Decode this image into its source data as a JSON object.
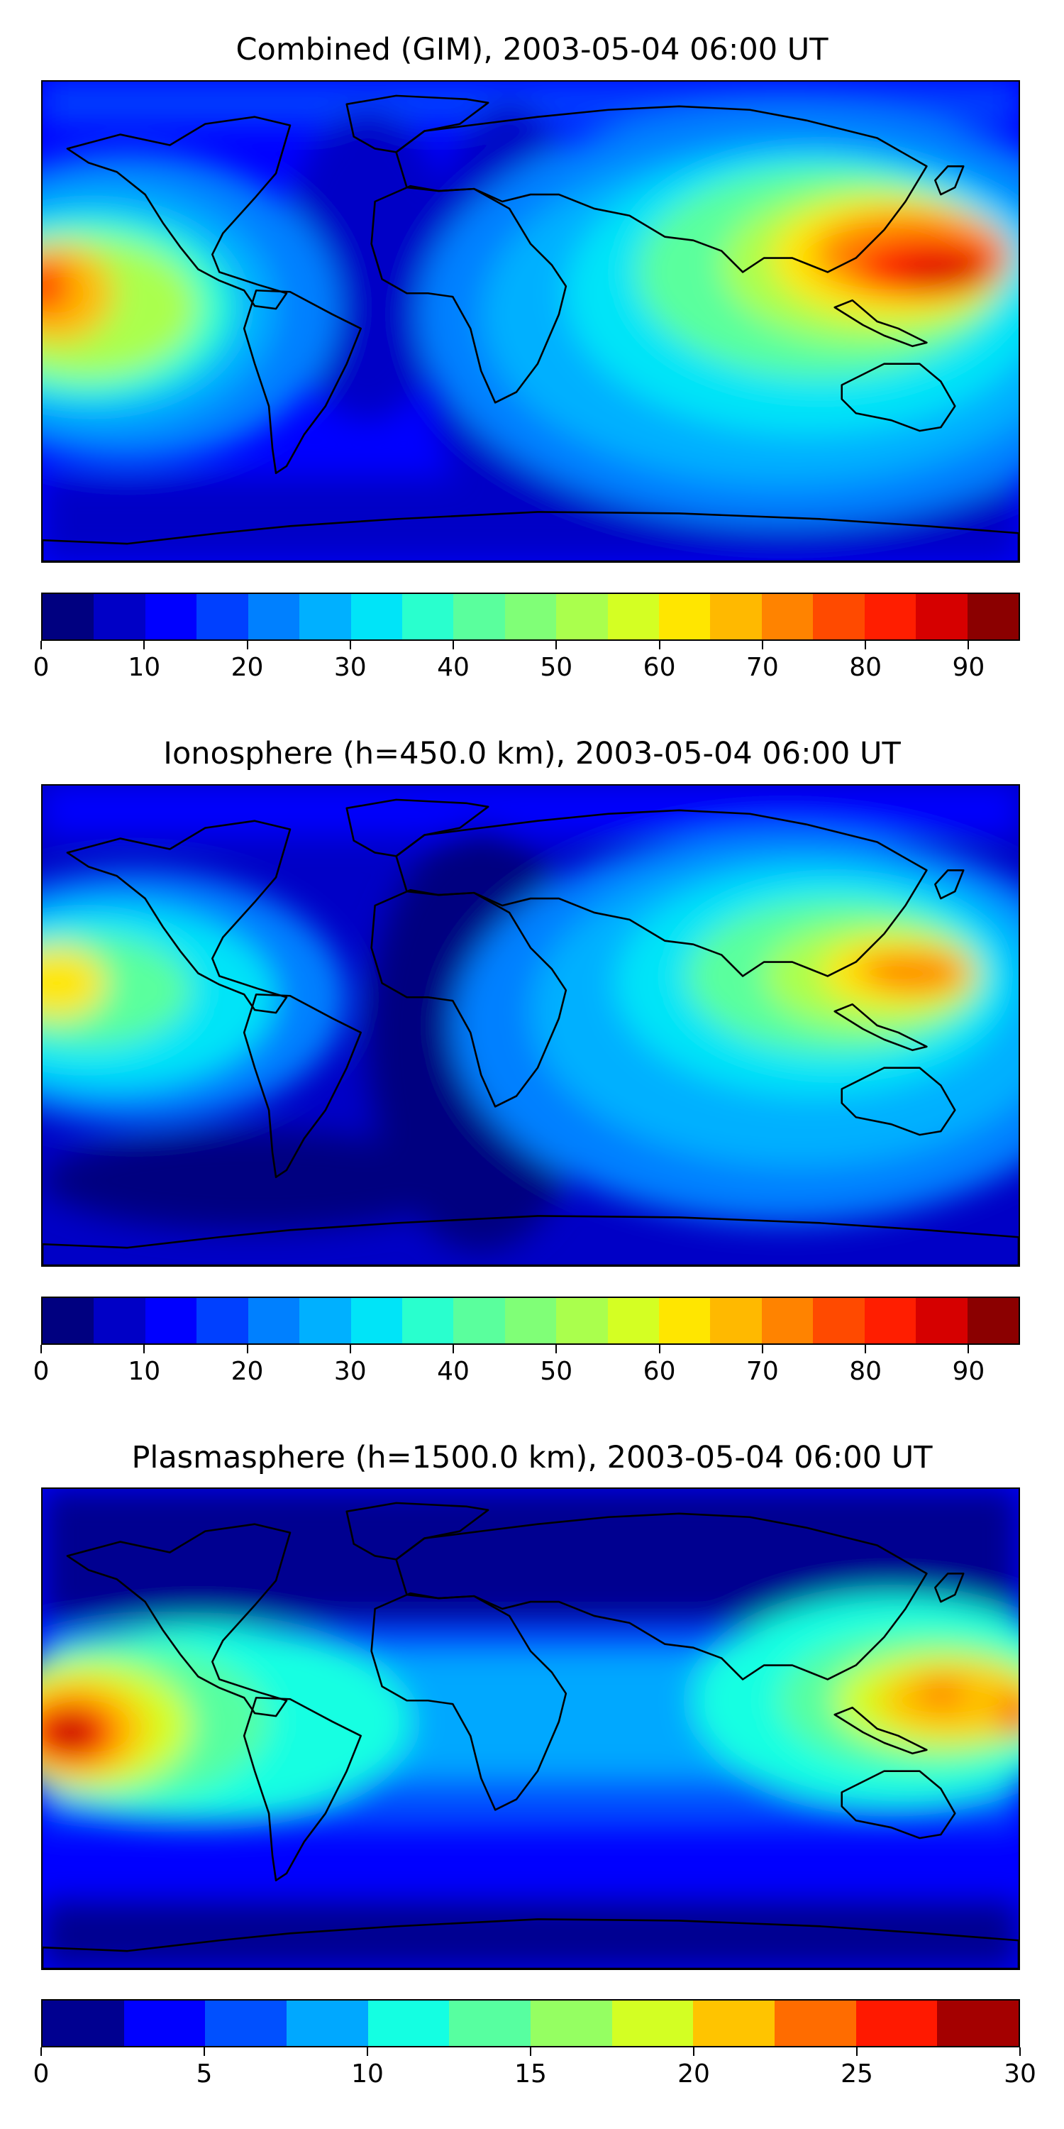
{
  "colors": {
    "jet19": [
      "#000080",
      "#0000c6",
      "#0000ff",
      "#0040ff",
      "#0080ff",
      "#00b0ff",
      "#00e4f8",
      "#29ffce",
      "#5aff9d",
      "#80ff77",
      "#aaff4d",
      "#d4ff23",
      "#ffe600",
      "#ffb900",
      "#ff8300",
      "#ff4a00",
      "#ff1e00",
      "#d60000",
      "#8b0000"
    ],
    "jet12": [
      "#000090",
      "#0000ff",
      "#0050ff",
      "#00a8ff",
      "#14ffe2",
      "#57ffa0",
      "#95ff62",
      "#d3ff23",
      "#ffc400",
      "#ff6c00",
      "#ff1900",
      "#a40000"
    ],
    "coastline": "#000000"
  },
  "panels": [
    {
      "id": "combined",
      "title": "Combined (GIM), 2003-05-04 06:00 UT",
      "colorbar": {
        "ticks": [
          "0",
          "10",
          "20",
          "30",
          "40",
          "50",
          "60",
          "70",
          "80",
          "90"
        ],
        "vmin": 0,
        "vmax": 95,
        "step": 5,
        "palette": "jet19"
      }
    },
    {
      "id": "ionosphere",
      "title": "Ionosphere  (h=450.0 km), 2003-05-04 06:00 UT",
      "colorbar": {
        "ticks": [
          "0",
          "10",
          "20",
          "30",
          "40",
          "50",
          "60",
          "70",
          "80",
          "90"
        ],
        "vmin": 0,
        "vmax": 95,
        "step": 5,
        "palette": "jet19"
      }
    },
    {
      "id": "plasmasphere",
      "title": "Plasmasphere (h=1500.0 km), 2003-05-04 06:00 UT",
      "colorbar": {
        "ticks": [
          "0",
          "5",
          "10",
          "15",
          "20",
          "25",
          "30"
        ],
        "vmin": 0,
        "vmax": 30,
        "step": 2.5,
        "palette": "jet12"
      }
    }
  ]
}
